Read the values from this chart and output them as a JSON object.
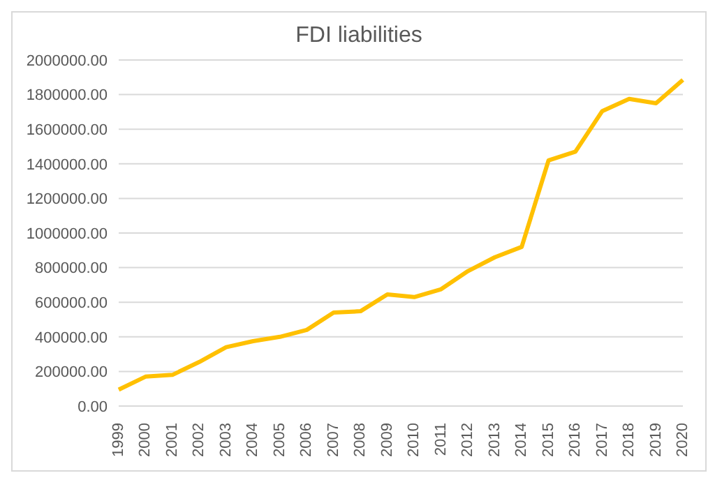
{
  "chart_data": {
    "type": "line",
    "title": "FDI liabilities",
    "categories": [
      "1999",
      "2000",
      "2001",
      "2002",
      "2003",
      "2004",
      "2005",
      "2006",
      "2007",
      "2008",
      "2009",
      "2010",
      "2011",
      "2012",
      "2013",
      "2014",
      "2015",
      "2016",
      "2017",
      "2018",
      "2019",
      "2020"
    ],
    "series": [
      {
        "color": "#ffc000",
        "values": [
          95000,
          170000,
          180000,
          255000,
          340000,
          375000,
          400000,
          440000,
          540000,
          548000,
          645000,
          630000,
          675000,
          780000,
          860000,
          920000,
          1420000,
          1470000,
          1705000,
          1775000,
          1750000,
          1885000
        ]
      }
    ],
    "ylim": [
      0,
      2000000
    ],
    "yticks": [
      {
        "value": 0,
        "label": "0.00"
      },
      {
        "value": 200000,
        "label": "200000.00"
      },
      {
        "value": 400000,
        "label": "400000.00"
      },
      {
        "value": 600000,
        "label": "600000.00"
      },
      {
        "value": 800000,
        "label": "800000.00"
      },
      {
        "value": 1000000,
        "label": "1000000.00"
      },
      {
        "value": 1200000,
        "label": "1200000.00"
      },
      {
        "value": 1400000,
        "label": "1400000.00"
      },
      {
        "value": 1600000,
        "label": "1600000.00"
      },
      {
        "value": 1800000,
        "label": "1800000.00"
      },
      {
        "value": 2000000,
        "label": "2000000.00"
      }
    ],
    "grid": "y",
    "legend": false,
    "marker": "none",
    "line_style": "solid"
  }
}
